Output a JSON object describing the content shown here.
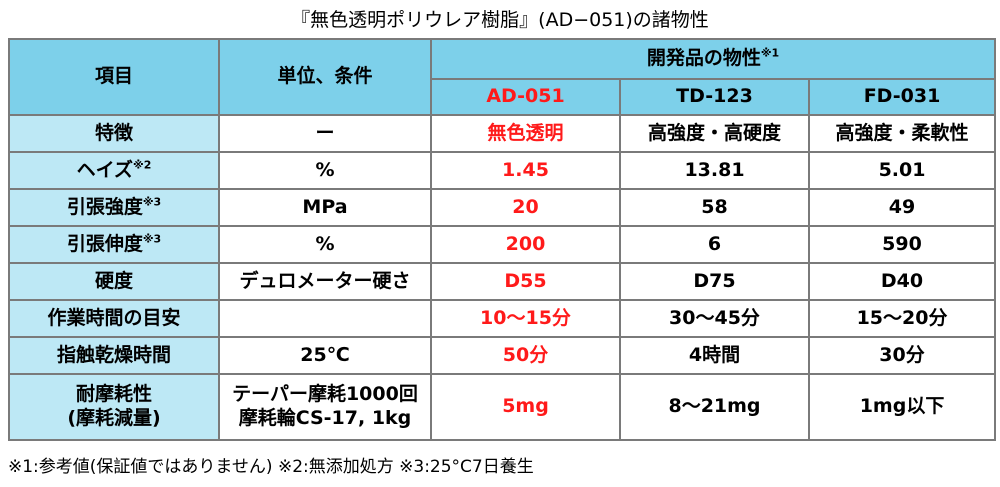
{
  "title": "『無色透明ポリウレア樹脂』(AD−051)の諸物性",
  "header": {
    "item": "項目",
    "unit": "単位、条件",
    "group": "開発品の物性",
    "group_note": "※1",
    "products": [
      "AD-051",
      "TD-123",
      "FD-031"
    ]
  },
  "rows": [
    {
      "label": "特徴",
      "label_note": "",
      "unit": "ー",
      "values": [
        "無色透明",
        "高強度・高硬度",
        "高強度・柔軟性"
      ]
    },
    {
      "label": "ヘイズ",
      "label_note": "※2",
      "unit": "%",
      "values": [
        "1.45",
        "13.81",
        "5.01"
      ]
    },
    {
      "label": "引張強度",
      "label_note": "※3",
      "unit": "MPa",
      "values": [
        "20",
        "58",
        "49"
      ]
    },
    {
      "label": "引張伸度",
      "label_note": "※3",
      "unit": "%",
      "values": [
        "200",
        "6",
        "590"
      ]
    },
    {
      "label": "硬度",
      "label_note": "",
      "unit": "デュロメーター硬さ",
      "values": [
        "D55",
        "D75",
        "D40"
      ]
    },
    {
      "label": "作業時間の目安",
      "label_note": "",
      "unit": "",
      "values": [
        "10〜15分",
        "30〜45分",
        "15〜20分"
      ]
    },
    {
      "label": "指触乾燥時間",
      "label_note": "",
      "unit": "25℃",
      "values": [
        "50分",
        "4時間",
        "30分"
      ]
    }
  ],
  "last_row": {
    "label_line1": "耐摩耗性",
    "label_line2": "(摩耗減量)",
    "unit_line1": "テーパー摩耗1000回",
    "unit_line2": "摩耗輪CS-17, 1kg",
    "values": [
      "5mg",
      "8〜21mg",
      "1mg以下"
    ]
  },
  "footnote": "※1:参考値(保証値ではありません) ※2:無添加処方 ※3:25°C7日養生",
  "colors": {
    "header_bg": "#7dd0ea",
    "label_bg": "#bde8f5",
    "highlight_text": "#ff1a1a",
    "border": "#7a7a7a"
  }
}
